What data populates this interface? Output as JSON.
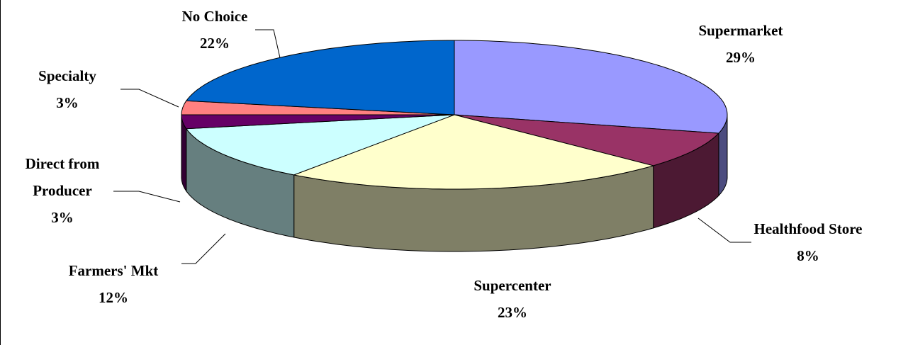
{
  "chart_data": {
    "type": "pie3d",
    "categories": [
      "Supermarket",
      "Healthfood Store",
      "Supercenter",
      "Farmers' Mkt",
      "Direct from Producer",
      "Specialty",
      "No Choice"
    ],
    "values": [
      29,
      8,
      23,
      12,
      3,
      3,
      22
    ],
    "value_labels": [
      "29%",
      "8%",
      "23%",
      "12%",
      "3%",
      "3%",
      "22%"
    ],
    "colors": [
      "#9999ff",
      "#993366",
      "#ffffcc",
      "#ccffff",
      "#660066",
      "#ff8080",
      "#0066cc"
    ]
  }
}
